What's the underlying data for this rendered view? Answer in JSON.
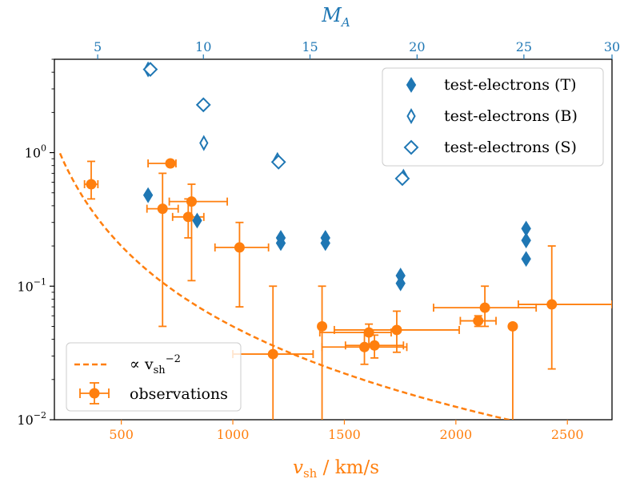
{
  "chart_data": {
    "type": "scatter",
    "x_scale": "linear",
    "y_scale": "log",
    "xlim": [
      200,
      2700
    ],
    "ylim": [
      0.01,
      5
    ],
    "xlabel": {
      "main": "v",
      "sub": "sh",
      "rest": " / km/s"
    },
    "top_xlabel": {
      "main": "M",
      "sub": "A"
    },
    "top_axis": {
      "ticks": [
        5,
        10,
        15,
        20,
        25,
        30
      ],
      "tick_labels": [
        "5",
        "10",
        "15",
        "20",
        "25",
        "30"
      ],
      "tick_positions_vsh": [
        394,
        868,
        1346,
        1826,
        2305,
        2700
      ]
    },
    "x_ticks": [
      500,
      1000,
      1500,
      2000,
      2500
    ],
    "x_tick_labels": [
      "500",
      "1000",
      "1500",
      "2000",
      "2500"
    ],
    "y_ticks": [
      0.01,
      0.1,
      1
    ],
    "y_tick_labels": [
      {
        "base": "10",
        "exp": "−2"
      },
      {
        "base": "10",
        "exp": "−1"
      },
      {
        "base": "10",
        "exp": "0"
      }
    ],
    "colors": {
      "orange": "#ff7f0e",
      "blue": "#1f77b4"
    },
    "fit_line": {
      "label": "∝ v",
      "label_sub": "sh",
      "label_sup": "−2",
      "coefficient": 50000,
      "exponent": -2,
      "x_range": [
        225,
        2700
      ]
    },
    "series": [
      {
        "name": "observations",
        "marker": "circle",
        "points": [
          {
            "x": 365,
            "y": 0.58,
            "xerr": [
              30,
              30
            ],
            "yerr": [
              0.13,
              0.28
            ]
          },
          {
            "x": 720,
            "y": 0.83,
            "xerr": [
              100,
              25
            ],
            "yerr": [
              0.0,
              0.0
            ]
          },
          {
            "x": 685,
            "y": 0.38,
            "xerr": [
              70,
              70
            ],
            "yerr": [
              0.33,
              0.32
            ]
          },
          {
            "x": 815,
            "y": 0.43,
            "xerr": [
              100,
              160
            ],
            "yerr": [
              0.32,
              0.15
            ]
          },
          {
            "x": 800,
            "y": 0.33,
            "xerr": [
              70,
              70
            ],
            "yerr": [
              0.1,
              0.12
            ]
          },
          {
            "x": 1030,
            "y": 0.195,
            "xerr": [
              110,
              130
            ],
            "yerr": [
              0.125,
              0.105
            ]
          },
          {
            "x": 1180,
            "y": 0.031,
            "xerr": [
              180,
              180
            ],
            "yerr": [
              0.022,
              0.069
            ]
          },
          {
            "x": 1400,
            "y": 0.05,
            "xerr": [
              0,
              0
            ],
            "yerr": [
              0.041,
              0.05
            ]
          },
          {
            "x": 1610,
            "y": 0.045,
            "xerr": [
              220,
              100
            ],
            "yerr": [
              0.009,
              0.007
            ]
          },
          {
            "x": 1590,
            "y": 0.035,
            "xerr": [
              190,
              190
            ],
            "yerr": [
              0.009,
              0.01
            ]
          },
          {
            "x": 1635,
            "y": 0.036,
            "xerr": [
              130,
              130
            ],
            "yerr": [
              0.007,
              0.007
            ]
          },
          {
            "x": 1735,
            "y": 0.047,
            "xerr": [
              280,
              280
            ],
            "yerr": [
              0.015,
              0.018
            ]
          },
          {
            "x": 2100,
            "y": 0.055,
            "xerr": [
              80,
              80
            ],
            "yerr": [
              0.005,
              0.005
            ]
          },
          {
            "x": 2130,
            "y": 0.069,
            "xerr": [
              230,
              230
            ],
            "yerr": [
              0.019,
              0.031
            ]
          },
          {
            "x": 2255,
            "y": 0.05,
            "xerr": [
              0,
              0
            ],
            "yerr": [
              0.043,
              0.0
            ]
          },
          {
            "x": 2430,
            "y": 0.073,
            "xerr": [
              150,
              270
            ],
            "yerr": [
              0.049,
              0.127
            ]
          }
        ]
      },
      {
        "name": "test-electrons (T)",
        "marker": "diamond-filled",
        "points": [
          {
            "x": 620,
            "y": 0.48
          },
          {
            "x": 840,
            "y": 0.31
          },
          {
            "x": 1215,
            "y": 0.23
          },
          {
            "x": 1215,
            "y": 0.21
          },
          {
            "x": 1415,
            "y": 0.23
          },
          {
            "x": 1415,
            "y": 0.21
          },
          {
            "x": 1752,
            "y": 0.12
          },
          {
            "x": 1752,
            "y": 0.105
          },
          {
            "x": 2315,
            "y": 0.27
          },
          {
            "x": 2315,
            "y": 0.22
          },
          {
            "x": 2315,
            "y": 0.16
          }
        ]
      },
      {
        "name": "test-electrons (B)",
        "marker": "diamond-thin-open",
        "points": [
          {
            "x": 620,
            "y": 4.2
          },
          {
            "x": 870,
            "y": 1.18
          },
          {
            "x": 1200,
            "y": 0.88
          },
          {
            "x": 1765,
            "y": 0.66
          }
        ]
      },
      {
        "name": "test-electrons (S)",
        "marker": "diamond-open",
        "points": [
          {
            "x": 630,
            "y": 4.2
          },
          {
            "x": 868,
            "y": 2.28
          },
          {
            "x": 1205,
            "y": 0.85
          },
          {
            "x": 1760,
            "y": 0.64
          }
        ]
      }
    ],
    "legends": {
      "upper_right": [
        {
          "label": "test-electrons (T)",
          "marker": "diamond-filled"
        },
        {
          "label": "test-electrons (B)",
          "marker": "diamond-thin-open"
        },
        {
          "label": "test-electrons (S)",
          "marker": "diamond-open"
        }
      ],
      "lower_left": [
        {
          "label_series": "fit_line",
          "marker": "dashed"
        },
        {
          "label": "observations",
          "marker": "errorbar-circle"
        }
      ]
    }
  }
}
